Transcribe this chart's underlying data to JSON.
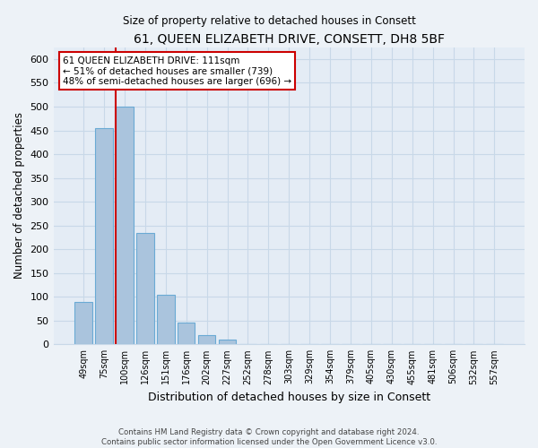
{
  "title": "61, QUEEN ELIZABETH DRIVE, CONSETT, DH8 5BF",
  "subtitle": "Size of property relative to detached houses in Consett",
  "xlabel": "Distribution of detached houses by size in Consett",
  "ylabel": "Number of detached properties",
  "bar_labels": [
    "49sqm",
    "75sqm",
    "100sqm",
    "126sqm",
    "151sqm",
    "176sqm",
    "202sqm",
    "227sqm",
    "252sqm",
    "278sqm",
    "303sqm",
    "329sqm",
    "354sqm",
    "379sqm",
    "405sqm",
    "430sqm",
    "455sqm",
    "481sqm",
    "506sqm",
    "532sqm",
    "557sqm"
  ],
  "bar_values": [
    90,
    455,
    500,
    235,
    105,
    45,
    20,
    10,
    1,
    0,
    0,
    0,
    0,
    0,
    0,
    0,
    0,
    0,
    0,
    1,
    1
  ],
  "bar_color": "#aac4dd",
  "bar_edge_color": "#6aaad4",
  "highlight_index": 2,
  "highlight_color": "#cc0000",
  "ylim": [
    0,
    625
  ],
  "yticks": [
    0,
    50,
    100,
    150,
    200,
    250,
    300,
    350,
    400,
    450,
    500,
    550,
    600
  ],
  "annotation_text": "61 QUEEN ELIZABETH DRIVE: 111sqm\n← 51% of detached houses are smaller (739)\n48% of semi-detached houses are larger (696) →",
  "annotation_box_color": "#ffffff",
  "annotation_box_edge": "#cc0000",
  "footer_line1": "Contains HM Land Registry data © Crown copyright and database right 2024.",
  "footer_line2": "Contains public sector information licensed under the Open Government Licence v3.0.",
  "background_color": "#edf2f7",
  "plot_background": "#e4ecf5",
  "grid_color": "#c8d8e8"
}
